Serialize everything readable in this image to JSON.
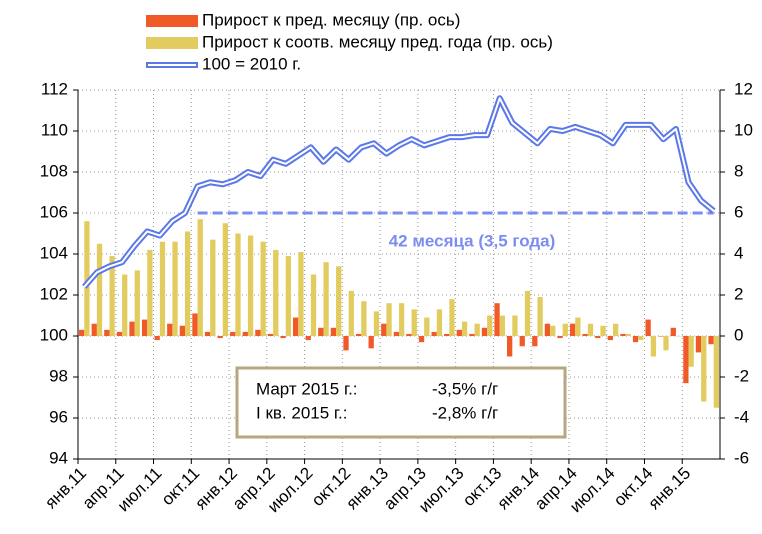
{
  "chart_data": {
    "type": "combo",
    "categories": [
      "янв.11",
      null,
      null,
      "апр.11",
      null,
      null,
      "июл.11",
      null,
      null,
      "окт.11",
      null,
      null,
      "янв.12",
      null,
      null,
      "апр.12",
      null,
      null,
      "июл.12",
      null,
      null,
      "окт.12",
      null,
      null,
      "янв.13",
      null,
      null,
      "апр.13",
      null,
      null,
      "июл.13",
      null,
      null,
      "окт.13",
      null,
      null,
      "янв.14",
      null,
      null,
      "апр.14",
      null,
      null,
      "июл.14",
      null,
      null,
      "окт.14",
      null,
      null,
      "янв.15",
      null,
      null
    ],
    "series": [
      {
        "name": "Прирост к пред. месяцу (пр. ось)",
        "kind": "bar",
        "axis": "y2",
        "color": "#f05a28",
        "values": [
          0.3,
          0.6,
          0.3,
          0.2,
          0.7,
          0.8,
          -0.2,
          0.6,
          0.5,
          1.1,
          0.2,
          -0.1,
          0.2,
          0.2,
          0.3,
          0.1,
          -0.1,
          0.9,
          -0.2,
          0.4,
          0.4,
          -0.7,
          0.1,
          -0.6,
          0.6,
          0.2,
          0.1,
          -0.3,
          0.2,
          0.1,
          0.3,
          0.1,
          0.4,
          1.6,
          -1.0,
          -0.5,
          -0.5,
          0.6,
          -0.1,
          0.6,
          0.1,
          -0.1,
          -0.2,
          0.1,
          -0.3,
          0.8,
          0.0,
          0.4,
          -2.3,
          -0.8,
          -0.4
        ]
      },
      {
        "name": "Прирост к соотв. месяцу пред. года (пр. ось)",
        "kind": "bar",
        "axis": "y2",
        "color": "#e3cc5f",
        "values": [
          5.6,
          4.5,
          3.9,
          3.0,
          3.2,
          4.2,
          4.6,
          4.6,
          5.1,
          5.7,
          4.7,
          5.5,
          5.0,
          4.9,
          4.6,
          4.2,
          3.9,
          4.1,
          3.0,
          3.6,
          3.4,
          2.2,
          1.7,
          1.2,
          1.6,
          1.6,
          1.3,
          0.9,
          1.3,
          1.8,
          0.7,
          0.6,
          1.0,
          1.0,
          1.0,
          2.2,
          1.9,
          0.5,
          0.6,
          0.9,
          0.6,
          0.5,
          0.6,
          0.1,
          -0.2,
          -1.0,
          -0.7,
          0.0,
          -1.5,
          -3.2,
          -3.5
        ]
      },
      {
        "name": "100 = 2010 г.",
        "kind": "line",
        "color": "#5b78e8",
        "values": [
          102.4,
          103.1,
          103.4,
          103.6,
          104.4,
          105.1,
          104.9,
          105.6,
          106.0,
          107.3,
          107.5,
          107.4,
          107.6,
          108.0,
          107.8,
          108.6,
          108.4,
          108.8,
          109.2,
          108.5,
          109.1,
          108.6,
          109.2,
          109.4,
          108.9,
          109.3,
          109.6,
          109.3,
          109.5,
          109.7,
          109.7,
          109.8,
          109.8,
          111.6,
          110.4,
          109.9,
          109.4,
          110.1,
          110.0,
          110.2,
          110.0,
          109.8,
          109.4,
          110.3,
          110.3,
          110.3,
          109.6,
          110.1,
          107.5,
          106.6,
          106.1
        ]
      }
    ],
    "ylim": [
      94,
      112
    ],
    "yticks": [
      94,
      96,
      98,
      100,
      102,
      104,
      106,
      108,
      110,
      112
    ],
    "y2lim": [
      -6,
      12
    ],
    "y2ticks": [
      -6,
      -4,
      -2,
      0,
      2,
      4,
      6,
      8,
      10,
      12
    ],
    "grid": true,
    "legend": "top",
    "annotation": {
      "text": "42 месяца (3,5 года)",
      "level": 106,
      "color": "#7b8df0"
    },
    "note_box": {
      "rows": [
        [
          "Март 2015 г.:",
          "-3,5% г/г"
        ],
        [
          "I кв. 2015 г.:",
          "-2,8% г/г"
        ]
      ],
      "border": "#b5a77f"
    }
  }
}
